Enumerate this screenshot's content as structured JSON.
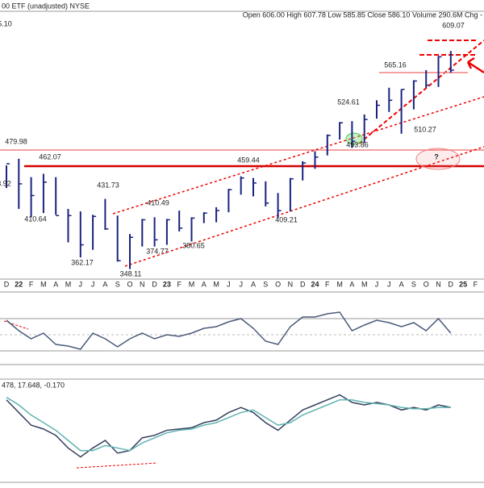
{
  "chart_data": [
    {
      "type": "ohlc",
      "title": "00 ETF (unadjusted) NYSE",
      "quote": "Open 606.00 High 607.78 Low 585.85 Close 586.10 Volume 290.6M Chg -",
      "categories": [
        "D",
        "22",
        "F",
        "M",
        "A",
        "M",
        "J",
        "J",
        "A",
        "S",
        "O",
        "N",
        "D",
        "23",
        "F",
        "M",
        "A",
        "M",
        "J",
        "J",
        "A",
        "S",
        "O",
        "N",
        "D",
        "24",
        "F",
        "M",
        "A",
        "M",
        "J",
        "J",
        "A",
        "S",
        "O",
        "N",
        "D",
        "25",
        "F"
      ],
      "high": [
        472,
        480,
        458,
        462,
        458,
        420,
        417,
        413,
        432,
        412,
        390,
        408,
        410,
        408,
        418,
        410,
        416,
        422,
        444,
        459,
        457,
        453,
        439,
        457,
        477,
        489,
        509,
        524,
        525,
        533,
        550,
        565,
        563,
        574,
        586,
        603,
        609,
        null,
        null
      ],
      "low": [
        445,
        420,
        410,
        415,
        413,
        380,
        362,
        371,
        395,
        357,
        348,
        375,
        375,
        377,
        393,
        381,
        403,
        404,
        416,
        437,
        435,
        423,
        409,
        417,
        454,
        468,
        484,
        503,
        493,
        499,
        528,
        536,
        510,
        539,
        565,
        566,
        583,
        null,
        null
      ],
      "close": [
        474,
        450,
        436,
        452,
        412,
        412,
        377,
        411,
        396,
        358,
        386,
        407,
        383,
        407,
        397,
        409,
        415,
        418,
        443,
        457,
        451,
        427,
        418,
        456,
        475,
        482,
        508,
        523,
        501,
        527,
        544,
        550,
        563,
        573,
        568,
        602,
        586,
        null,
        null
      ],
      "color": "#1a237e",
      "ylim": [
        337,
        641
      ],
      "annotations": [
        "5.10",
        "479.98",
        "3.92",
        "410.64",
        "462.07",
        "362.17",
        "431.73",
        "348.11",
        "410.49",
        "374.77",
        "380.65",
        "459.44",
        "409.21",
        "524.61",
        "493.86",
        "565.16",
        "510.27",
        "609.07",
        "?"
      ]
    },
    {
      "type": "line",
      "series": [
        {
          "color": "#4a5a7a",
          "values": [
            68,
            55,
            45,
            52,
            38,
            36,
            32,
            52,
            45,
            35,
            45,
            52,
            45,
            50,
            48,
            52,
            58,
            60,
            66,
            70,
            58,
            42,
            38,
            60,
            72,
            72,
            76,
            78,
            55,
            62,
            68,
            65,
            60,
            65,
            55,
            70,
            52,
            null,
            null
          ]
        }
      ],
      "ylim": [
        20,
        90
      ]
    },
    {
      "type": "line",
      "label": "478, 17.648, -0.170",
      "series": [
        {
          "color": "#34405e",
          "values": [
            20,
            10,
            0,
            -3,
            -8,
            -18,
            -25,
            -18,
            -12,
            -22,
            -20,
            -10,
            -8,
            -4,
            -3,
            -2,
            2,
            4,
            10,
            14,
            10,
            2,
            -4,
            4,
            12,
            16,
            20,
            24,
            18,
            16,
            18,
            16,
            12,
            14,
            12,
            16,
            14,
            null,
            null
          ]
        },
        {
          "color": "#5fb3b0",
          "values": [
            22,
            16,
            8,
            2,
            -4,
            -12,
            -20,
            -20,
            -16,
            -18,
            -20,
            -14,
            -10,
            -6,
            -4,
            -3,
            0,
            2,
            6,
            10,
            12,
            6,
            0,
            2,
            8,
            12,
            16,
            20,
            20,
            18,
            17,
            16,
            14,
            13,
            13,
            14,
            14,
            null,
            null
          ]
        }
      ],
      "ylim": [
        -40,
        30
      ]
    }
  ]
}
